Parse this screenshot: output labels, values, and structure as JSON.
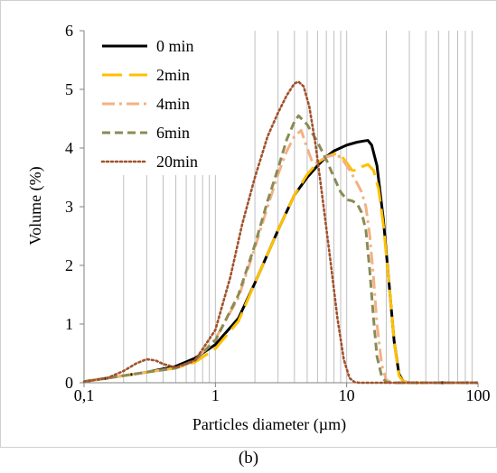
{
  "caption": "(b)",
  "chart_data": {
    "type": "line",
    "xlabel": "Particles diameter (µm)",
    "ylabel": "Volume (%)",
    "xscale": "log",
    "xlim": [
      0.1,
      100
    ],
    "ylim": [
      0,
      6
    ],
    "x_ticks": [
      0.1,
      1,
      10,
      100
    ],
    "x_tick_labels": [
      "0,1",
      "1",
      "10",
      "100"
    ],
    "y_ticks": [
      0,
      1,
      2,
      3,
      4,
      5,
      6
    ],
    "y_tick_labels": [
      "0",
      "1",
      "2",
      "3",
      "4",
      "5",
      "6"
    ],
    "grid": "vertical log gridlines",
    "legend_position": "top-left",
    "series": [
      {
        "name": "0 min",
        "color": "#000000",
        "dash": "solid",
        "points": [
          [
            0.1,
            0.02
          ],
          [
            0.2,
            0.12
          ],
          [
            0.3,
            0.18
          ],
          [
            0.5,
            0.28
          ],
          [
            0.7,
            0.42
          ],
          [
            1,
            0.65
          ],
          [
            1.5,
            1.1
          ],
          [
            2,
            1.7
          ],
          [
            3,
            2.6
          ],
          [
            4,
            3.2
          ],
          [
            5,
            3.5
          ],
          [
            6,
            3.7
          ],
          [
            7,
            3.85
          ],
          [
            8,
            3.95
          ],
          [
            10,
            4.05
          ],
          [
            12,
            4.1
          ],
          [
            13.5,
            4.12
          ],
          [
            14.5,
            4.13
          ],
          [
            15.5,
            4.05
          ],
          [
            17,
            3.7
          ],
          [
            19,
            2.8
          ],
          [
            21,
            1.7
          ],
          [
            23,
            0.7
          ],
          [
            25,
            0.15
          ],
          [
            27,
            0.02
          ],
          [
            30,
            0.0
          ],
          [
            100,
            0.0
          ]
        ]
      },
      {
        "name": "2min",
        "color": "#FFC000",
        "dash": "long-dash",
        "points": [
          [
            0.1,
            0.02
          ],
          [
            0.2,
            0.12
          ],
          [
            0.3,
            0.18
          ],
          [
            0.5,
            0.25
          ],
          [
            0.7,
            0.35
          ],
          [
            1,
            0.58
          ],
          [
            1.5,
            1.05
          ],
          [
            2,
            1.7
          ],
          [
            3,
            2.6
          ],
          [
            4,
            3.2
          ],
          [
            5,
            3.55
          ],
          [
            6,
            3.75
          ],
          [
            7,
            3.85
          ],
          [
            8,
            3.9
          ],
          [
            9,
            3.88
          ],
          [
            10,
            3.75
          ],
          [
            11,
            3.62
          ],
          [
            12,
            3.62
          ],
          [
            13,
            3.68
          ],
          [
            14.5,
            3.72
          ],
          [
            16,
            3.62
          ],
          [
            17.5,
            3.3
          ],
          [
            19,
            2.7
          ],
          [
            21,
            1.7
          ],
          [
            23,
            0.7
          ],
          [
            25,
            0.12
          ],
          [
            27,
            0.02
          ],
          [
            30,
            0.0
          ],
          [
            100,
            0.0
          ]
        ]
      },
      {
        "name": "4min",
        "color": "#F4B183",
        "dash": "dash-dot",
        "points": [
          [
            0.1,
            0.02
          ],
          [
            0.2,
            0.12
          ],
          [
            0.3,
            0.18
          ],
          [
            0.5,
            0.25
          ],
          [
            0.7,
            0.38
          ],
          [
            1,
            0.75
          ],
          [
            1.5,
            1.45
          ],
          [
            2,
            2.3
          ],
          [
            2.5,
            3.0
          ],
          [
            3,
            3.55
          ],
          [
            3.5,
            3.95
          ],
          [
            4,
            4.2
          ],
          [
            4.5,
            4.3
          ],
          [
            5,
            4.0
          ],
          [
            5.5,
            3.75
          ],
          [
            6,
            3.75
          ],
          [
            7,
            3.85
          ],
          [
            8,
            3.88
          ],
          [
            9,
            3.85
          ],
          [
            10,
            3.7
          ],
          [
            11,
            3.55
          ],
          [
            12,
            3.4
          ],
          [
            13,
            3.25
          ],
          [
            14,
            3.0
          ],
          [
            15,
            2.5
          ],
          [
            16,
            1.8
          ],
          [
            17,
            1.0
          ],
          [
            18.5,
            0.3
          ],
          [
            20,
            0.05
          ],
          [
            22,
            0.0
          ],
          [
            100,
            0.0
          ]
        ]
      },
      {
        "name": "6min",
        "color": "#8B8B55",
        "dash": "dash",
        "points": [
          [
            0.1,
            0.02
          ],
          [
            0.2,
            0.12
          ],
          [
            0.3,
            0.18
          ],
          [
            0.5,
            0.25
          ],
          [
            0.7,
            0.38
          ],
          [
            1,
            0.72
          ],
          [
            1.5,
            1.5
          ],
          [
            2,
            2.35
          ],
          [
            2.5,
            3.1
          ],
          [
            3,
            3.65
          ],
          [
            3.5,
            4.15
          ],
          [
            4,
            4.45
          ],
          [
            4.3,
            4.55
          ],
          [
            5,
            4.4
          ],
          [
            6,
            4.1
          ],
          [
            7,
            3.8
          ],
          [
            8,
            3.5
          ],
          [
            9,
            3.25
          ],
          [
            10,
            3.12
          ],
          [
            11,
            3.1
          ],
          [
            12,
            3.05
          ],
          [
            13,
            2.9
          ],
          [
            14,
            2.6
          ],
          [
            15,
            1.9
          ],
          [
            16,
            1.1
          ],
          [
            17,
            0.45
          ],
          [
            18.5,
            0.1
          ],
          [
            20,
            0.01
          ],
          [
            22,
            0.0
          ],
          [
            100,
            0.0
          ]
        ]
      },
      {
        "name": "20min",
        "color": "#A0522D",
        "dash": "dotted",
        "points": [
          [
            0.1,
            0.02
          ],
          [
            0.15,
            0.08
          ],
          [
            0.2,
            0.2
          ],
          [
            0.25,
            0.33
          ],
          [
            0.3,
            0.4
          ],
          [
            0.35,
            0.38
          ],
          [
            0.4,
            0.32
          ],
          [
            0.5,
            0.26
          ],
          [
            0.7,
            0.38
          ],
          [
            1,
            0.9
          ],
          [
            1.3,
            1.8
          ],
          [
            1.6,
            2.7
          ],
          [
            2,
            3.5
          ],
          [
            2.5,
            4.2
          ],
          [
            3,
            4.6
          ],
          [
            3.5,
            4.9
          ],
          [
            4,
            5.1
          ],
          [
            4.3,
            5.13
          ],
          [
            4.7,
            5.05
          ],
          [
            5.2,
            4.7
          ],
          [
            5.8,
            4.05
          ],
          [
            6.5,
            3.2
          ],
          [
            7.5,
            2.1
          ],
          [
            8.5,
            1.1
          ],
          [
            9.5,
            0.4
          ],
          [
            10.5,
            0.08
          ],
          [
            11.5,
            0.01
          ],
          [
            12.5,
            0.0
          ],
          [
            100,
            0.0
          ]
        ]
      }
    ]
  }
}
